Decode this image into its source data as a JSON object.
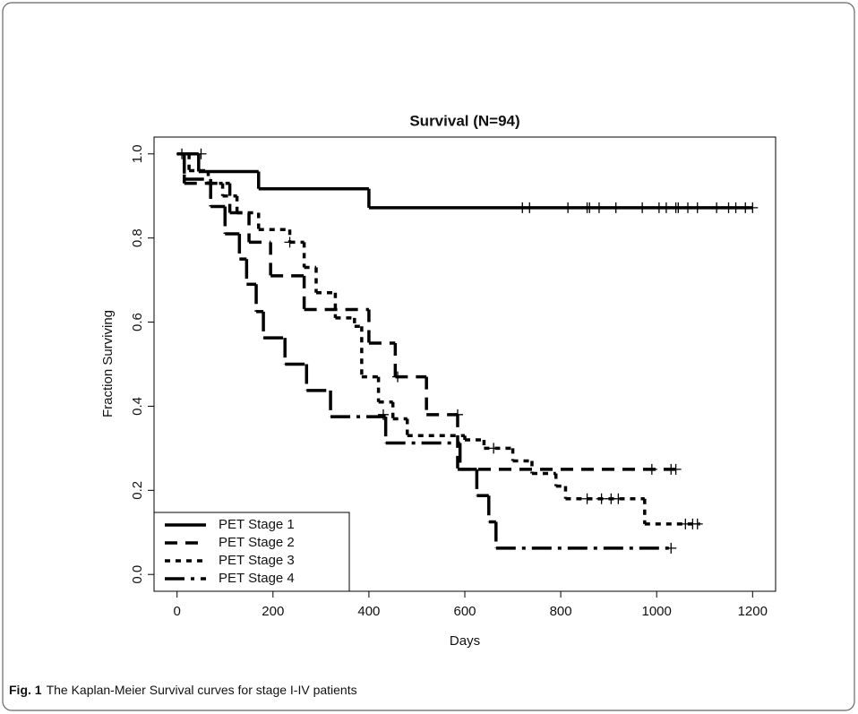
{
  "chart_data": {
    "type": "step",
    "title": "Survival (N=94)",
    "x_label": "Days",
    "y_label": "Fraction Surviving",
    "caption_label": "Fig. 1",
    "caption": "The Kaplan-Meier Survival curves for stage I-IV patients",
    "xlim": [
      -48,
      1248
    ],
    "ylim": [
      -0.04,
      1.04
    ],
    "xticks": [
      0,
      200,
      400,
      600,
      800,
      1000,
      1200
    ],
    "yticks": [
      {
        "value": 0,
        "label": "0.0"
      },
      0.2,
      0.4,
      0.6,
      0.8,
      {
        "value": 1,
        "label": "1.0"
      }
    ],
    "legend": "lower left",
    "series": [
      {
        "name": "PET Stage 1",
        "color": "#000000",
        "dash": "none",
        "x": [
          0,
          45,
          170,
          400,
          1200
        ],
        "y": [
          1.0,
          0.958,
          0.917,
          0.872,
          0.872
        ],
        "censor_x": [
          10,
          50,
          720,
          735,
          815,
          855,
          860,
          880,
          915,
          970,
          1005,
          1020,
          1040,
          1045,
          1065,
          1085,
          1125,
          1150,
          1165,
          1185,
          1200
        ],
        "censor_y": [
          1.0,
          1.0,
          0.872,
          0.872,
          0.872,
          0.872,
          0.872,
          0.872,
          0.872,
          0.872,
          0.872,
          0.872,
          0.872,
          0.872,
          0.872,
          0.872,
          0.872,
          0.872,
          0.872,
          0.872,
          0.872
        ]
      },
      {
        "name": "PET Stage 2",
        "color": "#000000",
        "dash": "14 9",
        "x": [
          0,
          15,
          110,
          150,
          195,
          265,
          400,
          455,
          520,
          585,
          1040
        ],
        "y": [
          1.0,
          0.93,
          0.86,
          0.79,
          0.71,
          0.63,
          0.55,
          0.47,
          0.38,
          0.25,
          0.25
        ],
        "censor_x": [
          460,
          585,
          990,
          1030,
          1040
        ],
        "censor_y": [
          0.47,
          0.38,
          0.25,
          0.25,
          0.25
        ]
      },
      {
        "name": "PET Stage 3",
        "color": "#000000",
        "dash": "6 6",
        "x": [
          0,
          25,
          65,
          95,
          125,
          170,
          235,
          265,
          290,
          330,
          370,
          385,
          420,
          450,
          480,
          600,
          640,
          700,
          740,
          790,
          810,
          975,
          1090
        ],
        "y": [
          1.0,
          0.96,
          0.93,
          0.9,
          0.86,
          0.82,
          0.79,
          0.73,
          0.67,
          0.61,
          0.59,
          0.47,
          0.41,
          0.37,
          0.33,
          0.32,
          0.3,
          0.27,
          0.24,
          0.21,
          0.18,
          0.12,
          0.12
        ],
        "censor_x": [
          235,
          430,
          660,
          855,
          885,
          905,
          920,
          1060,
          1075,
          1085
        ],
        "censor_y": [
          0.79,
          0.38,
          0.3,
          0.18,
          0.18,
          0.18,
          0.18,
          0.12,
          0.12,
          0.12
        ]
      },
      {
        "name": "PET Stage 4",
        "color": "#000000",
        "dash": "22 7 4 7",
        "x": [
          0,
          15,
          70,
          100,
          130,
          145,
          165,
          180,
          225,
          270,
          320,
          435,
          590,
          625,
          650,
          665,
          1030
        ],
        "y": [
          1.0,
          0.94,
          0.875,
          0.81,
          0.75,
          0.69,
          0.625,
          0.5625,
          0.5,
          0.4375,
          0.375,
          0.3125,
          0.25,
          0.1875,
          0.125,
          0.0625,
          0.0625
        ],
        "censor_x": [
          1030
        ],
        "censor_y": [
          0.0625
        ]
      }
    ]
  }
}
